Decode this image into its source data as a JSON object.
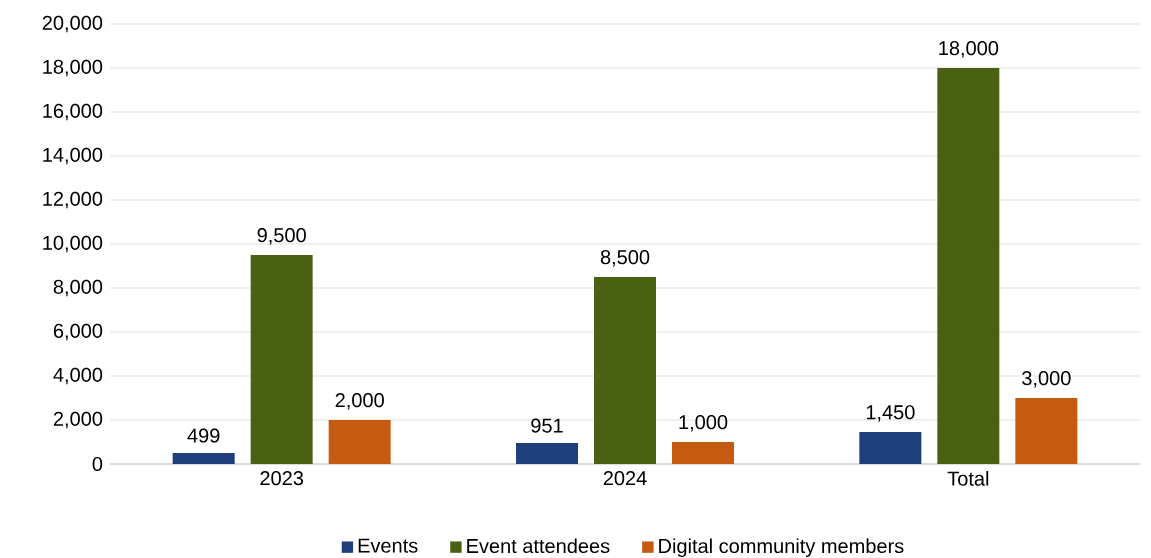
{
  "chart_data": {
    "type": "bar",
    "categories": [
      "2023",
      "2024",
      "Total"
    ],
    "series": [
      {
        "name": "Events",
        "color": "#1f3e7c",
        "values": [
          499,
          951,
          1450
        ],
        "value_labels": [
          "499",
          "951",
          "1,450"
        ]
      },
      {
        "name": "Event attendees",
        "color": "#4a6114",
        "values": [
          9500,
          8500,
          18000
        ],
        "value_labels": [
          "9,500",
          "8,500",
          "18,000"
        ]
      },
      {
        "name": "Digital community members",
        "color": "#c55a11",
        "values": [
          2000,
          1000,
          3000
        ],
        "value_labels": [
          "2,000",
          "1,000",
          "3,000"
        ]
      }
    ],
    "ylim": [
      0,
      20000
    ],
    "yticks": [
      {
        "value": 0,
        "label": "0"
      },
      {
        "value": 2000,
        "label": "2,000"
      },
      {
        "value": 4000,
        "label": "4,000"
      },
      {
        "value": 6000,
        "label": "6,000"
      },
      {
        "value": 8000,
        "label": "8,000"
      },
      {
        "value": 10000,
        "label": "10,000"
      },
      {
        "value": 12000,
        "label": "12,000"
      },
      {
        "value": 14000,
        "label": "14,000"
      },
      {
        "value": 16000,
        "label": "16,000"
      },
      {
        "value": 18000,
        "label": "18,000"
      },
      {
        "value": 20000,
        "label": "20,000"
      }
    ],
    "grid": "y",
    "legend": "bottom"
  }
}
